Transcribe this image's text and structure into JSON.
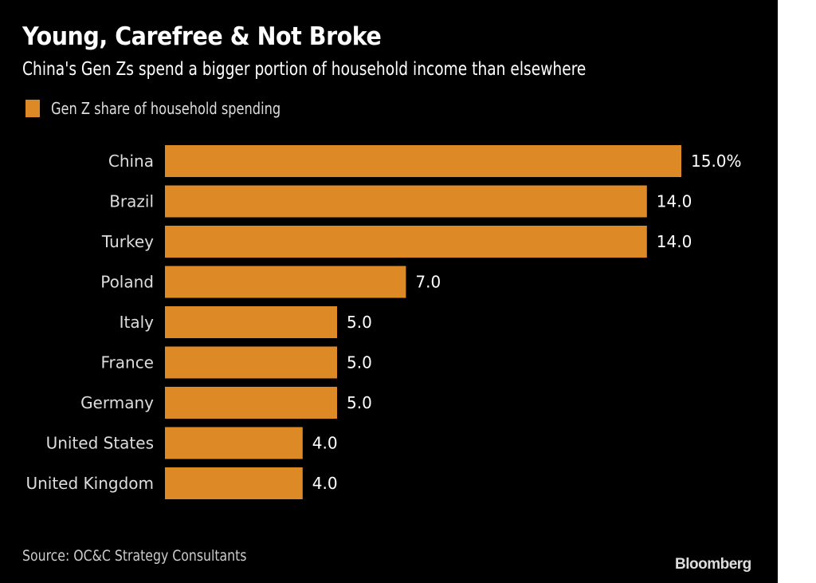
{
  "title": "Young, Carefree & Not Broke",
  "subtitle": "China's Gen Zs spend a bigger portion of household income than elsewhere",
  "source": "Source: OC&C Strategy Consultants",
  "brand": "Bloomberg",
  "chart_data": {
    "type": "bar",
    "orientation": "horizontal",
    "categories": [
      "China",
      "Brazil",
      "Turkey",
      "Poland",
      "Italy",
      "France",
      "Germany",
      "United States",
      "United Kingdom"
    ],
    "series": [
      {
        "name": "Gen Z share of household spending",
        "values": [
          15.0,
          14.0,
          14.0,
          7.0,
          5.0,
          5.0,
          5.0,
          4.0,
          4.0
        ],
        "color": "#dd8a26"
      }
    ],
    "value_labels": [
      "15.0%",
      "14.0",
      "14.0",
      "7.0",
      "5.0",
      "5.0",
      "5.0",
      "4.0",
      "4.0"
    ],
    "xlim": [
      0,
      15
    ],
    "grid": false,
    "legend": "top-left",
    "background": "#000000"
  }
}
